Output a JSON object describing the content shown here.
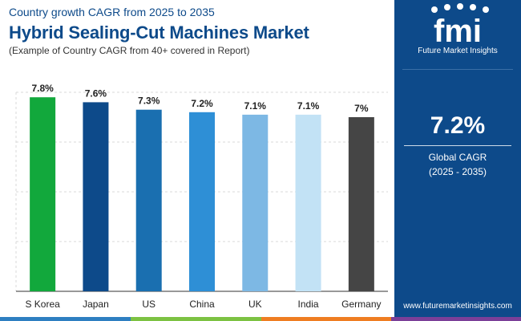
{
  "header": {
    "subtitle": "Country growth CAGR from 2025 to 2035",
    "title": "Hybrid Sealing-Cut Machines Market",
    "note": "(Example of Country CAGR from 40+ covered in Report)"
  },
  "chart_data": {
    "type": "bar",
    "categories": [
      "S Korea",
      "Japan",
      "US",
      "China",
      "UK",
      "India",
      "Germany"
    ],
    "values": [
      7.8,
      7.6,
      7.3,
      7.2,
      7.1,
      7.1,
      7.0
    ],
    "data_labels": [
      "7.8%",
      "7.6%",
      "7.3%",
      "7.2%",
      "7.1%",
      "7.1%",
      "7%"
    ],
    "colors": [
      "#12a83c",
      "#0d4a8a",
      "#1a6fb0",
      "#2e8fd6",
      "#7db8e4",
      "#c2e2f5",
      "#454545"
    ],
    "ylim": [
      0,
      8
    ],
    "grid": true,
    "legend": "none"
  },
  "sidebar": {
    "logo_text": "fmi",
    "brand": "Future Market Insights",
    "cagr_value": "7.2%",
    "cagr_label": "Global CAGR",
    "cagr_period": "(2025 - 2035)",
    "website": "www.futuremarketinsights.com"
  },
  "theme": {
    "brand_color": "#0d4a8a",
    "bottom_bar": [
      "#2e7fc1",
      "#7cc242",
      "#ef7d22",
      "#7b3f98"
    ]
  }
}
